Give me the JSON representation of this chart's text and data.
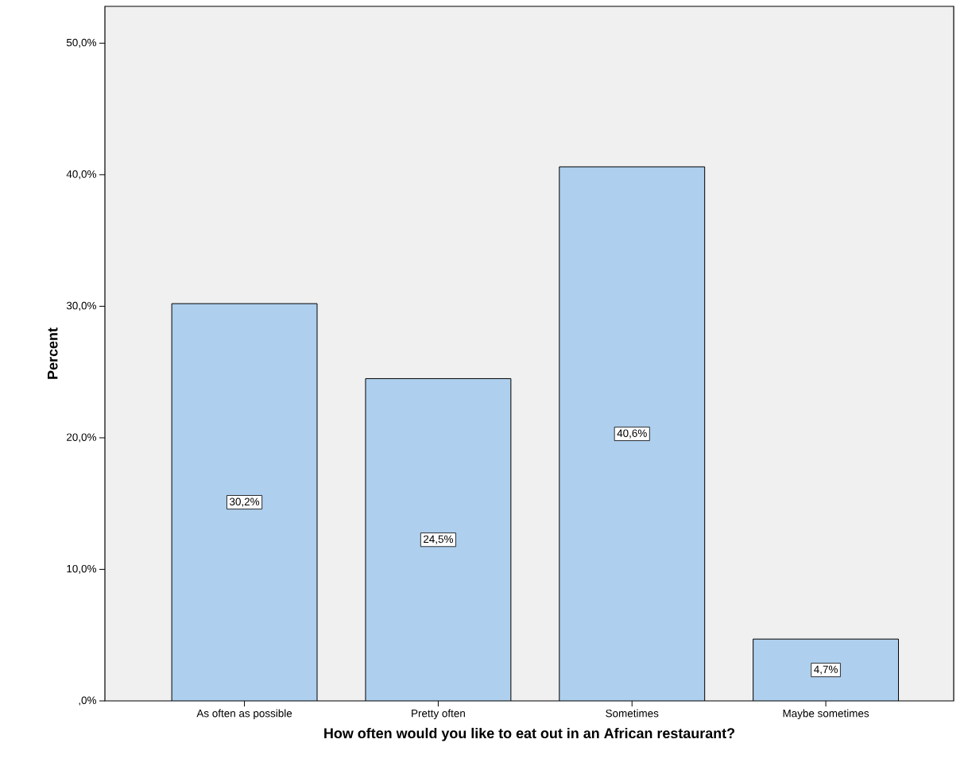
{
  "chart_data": {
    "type": "bar",
    "xlabel": "How often would you like to eat out in an African restaurant?",
    "ylabel": "Percent",
    "categories": [
      "As often as possible",
      "Pretty often",
      "Sometimes",
      "Maybe sometimes"
    ],
    "values": [
      30.2,
      24.5,
      40.6,
      4.7
    ],
    "value_labels": [
      "30,2%",
      "24,5%",
      "40,6%",
      "4,7%"
    ],
    "color": "#aecfed",
    "ylim": [
      0,
      52.8
    ],
    "yticks": [
      {
        "value": 0,
        "label": ",0%"
      },
      {
        "value": 10,
        "label": "10,0%"
      },
      {
        "value": 20,
        "label": "20,0%"
      },
      {
        "value": 30,
        "label": "30,0%"
      },
      {
        "value": 40,
        "label": "40,0%"
      },
      {
        "value": 50,
        "label": "50,0%"
      }
    ]
  }
}
